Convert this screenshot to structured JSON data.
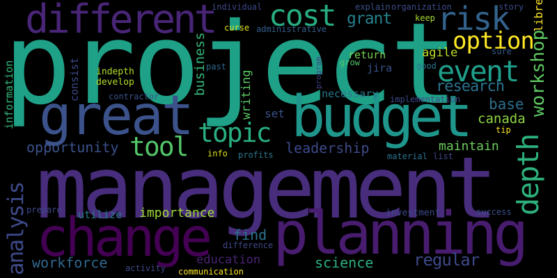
{
  "words": [
    {
      "text": "project",
      "color": "#1fa187"
    },
    {
      "text": "management",
      "color": "#472d7b"
    },
    {
      "text": "planning",
      "color": "#481c6e"
    },
    {
      "text": "budget",
      "color": "#1f968b"
    },
    {
      "text": "change",
      "color": "#440154"
    },
    {
      "text": "great",
      "color": "#3b528b"
    },
    {
      "text": "different",
      "color": "#482576"
    },
    {
      "text": "cost",
      "color": "#27ad81"
    },
    {
      "text": "risk",
      "color": "#33638d"
    },
    {
      "text": "event",
      "color": "#1f9e89"
    },
    {
      "text": "option",
      "color": "#fde725"
    },
    {
      "text": "topic",
      "color": "#29af7f"
    },
    {
      "text": "tool",
      "color": "#52c569"
    },
    {
      "text": "depth",
      "color": "#2db27d"
    },
    {
      "text": "workshop",
      "color": "#5ec962"
    },
    {
      "text": "analysis",
      "color": "#3e4989"
    },
    {
      "text": "opportunity",
      "color": "#3b528b"
    },
    {
      "text": "leadership",
      "color": "#3e4a89"
    },
    {
      "text": "business",
      "color": "#35b779"
    },
    {
      "text": "writing",
      "color": "#5cc863"
    },
    {
      "text": "grant",
      "color": "#26828e"
    },
    {
      "text": "research",
      "color": "#2c728e"
    },
    {
      "text": "base",
      "color": "#2e6f8e"
    },
    {
      "text": "canada",
      "color": "#8fd744"
    },
    {
      "text": "maintain",
      "color": "#6ccd5a"
    },
    {
      "text": "return",
      "color": "#77d153"
    },
    {
      "text": "agile",
      "color": "#bddf26"
    },
    {
      "text": "jira",
      "color": "#3b528b"
    },
    {
      "text": "necessary",
      "color": "#2a788e"
    },
    {
      "text": "set",
      "color": "#3b528b"
    },
    {
      "text": "find",
      "color": "#2c728e"
    },
    {
      "text": "importance",
      "color": "#a0da39"
    },
    {
      "text": "utilize",
      "color": "#2a788e"
    },
    {
      "text": "workforce",
      "color": "#31688e"
    },
    {
      "text": "education",
      "color": "#482475"
    },
    {
      "text": "science",
      "color": "#2cb17e"
    },
    {
      "text": "regular",
      "color": "#3e4989"
    },
    {
      "text": "information",
      "color": "#35b779"
    },
    {
      "text": "individual",
      "color": "#3e4989"
    },
    {
      "text": "curse",
      "color": "#e5e419"
    },
    {
      "text": "administrative",
      "color": "#355f8d"
    },
    {
      "text": "explain",
      "color": "#3b528b"
    },
    {
      "text": "organization",
      "color": "#3e4c8a"
    },
    {
      "text": "story",
      "color": "#3e4c8a"
    },
    {
      "text": "libre",
      "color": "#fde725"
    },
    {
      "text": "keep",
      "color": "#a8db34"
    },
    {
      "text": "sure",
      "color": "#365c8d"
    },
    {
      "text": "good",
      "color": "#2a788e"
    },
    {
      "text": "grow",
      "color": "#52c569"
    },
    {
      "text": "past",
      "color": "#31688e"
    },
    {
      "text": "consist",
      "color": "#3e4989"
    },
    {
      "text": "indepth",
      "color": "#b5de2b"
    },
    {
      "text": "develop",
      "color": "#b5de2b"
    },
    {
      "text": "program",
      "color": "#404387"
    },
    {
      "text": "contractor",
      "color": "#3b528b"
    },
    {
      "text": "implementation",
      "color": "#3e4989"
    },
    {
      "text": "tip",
      "color": "#fde725"
    },
    {
      "text": "info",
      "color": "#dde318"
    },
    {
      "text": "profits",
      "color": "#2a788e"
    },
    {
      "text": "material",
      "color": "#2c728e"
    },
    {
      "text": "list",
      "color": "#3e4989"
    },
    {
      "text": "prepare",
      "color": "#3e4989"
    },
    {
      "text": "investment",
      "color": "#3e4989"
    },
    {
      "text": "success",
      "color": "#3b528b"
    },
    {
      "text": "difference",
      "color": "#3e4989"
    },
    {
      "text": "activity",
      "color": "#3e4989"
    },
    {
      "text": "communication",
      "color": "#fde725"
    }
  ]
}
